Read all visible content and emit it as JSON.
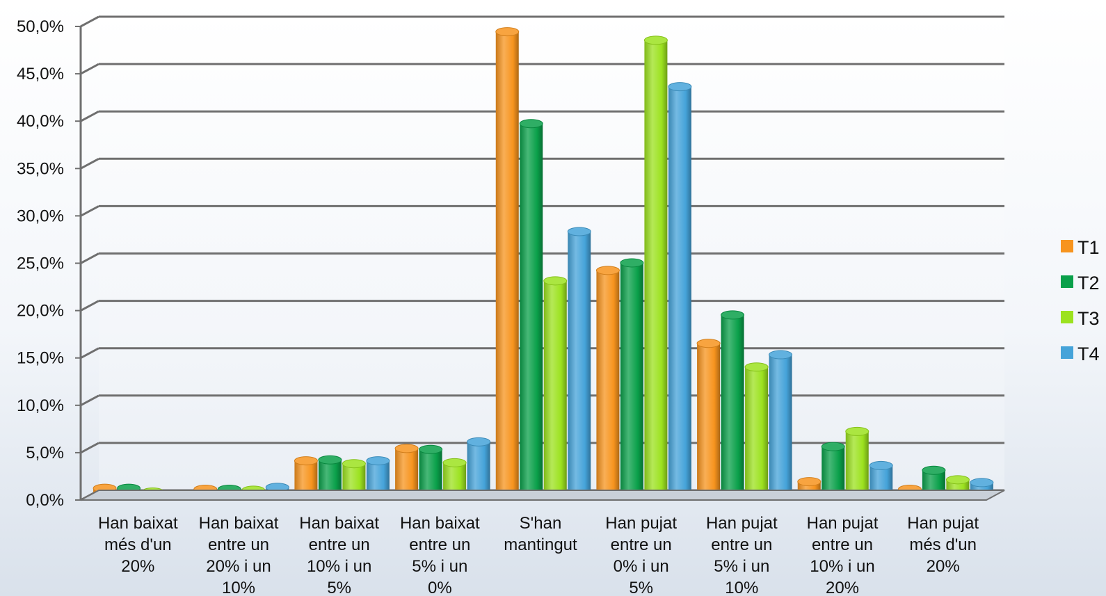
{
  "chart_data": {
    "type": "bar",
    "categories": [
      [
        "Han baixat",
        "més d'un",
        "20%"
      ],
      [
        "Han baixat",
        "entre un",
        "20% i un",
        "10%"
      ],
      [
        "Han baixat",
        "entre un",
        "10% i un",
        "5%"
      ],
      [
        "Han baixat",
        "entre un",
        "5% i un",
        "0%"
      ],
      [
        "S'han",
        "mantingut"
      ],
      [
        "Han pujat",
        "entre un",
        "0% i un",
        "5%"
      ],
      [
        "Han pujat",
        "entre un",
        "5% i un",
        "10%"
      ],
      [
        "Han pujat",
        "entre un",
        "10% i un",
        "20%"
      ],
      [
        "Han pujat",
        "més d'un",
        "20%"
      ]
    ],
    "series": [
      {
        "name": "T1",
        "color": "#f7941e",
        "values": [
          0.8,
          0.7,
          3.7,
          5.0,
          49.0,
          23.8,
          16.1,
          1.5,
          0.7
        ]
      },
      {
        "name": "T2",
        "color": "#0aa04a",
        "values": [
          0.8,
          0.7,
          3.8,
          4.9,
          39.3,
          24.6,
          19.1,
          5.2,
          2.7
        ]
      },
      {
        "name": "T3",
        "color": "#9ce21f",
        "values": [
          0.4,
          0.6,
          3.4,
          3.5,
          22.7,
          48.1,
          13.6,
          6.8,
          1.7
        ]
      },
      {
        "name": "T4",
        "color": "#45a3d9",
        "values": [
          0.1,
          0.9,
          3.7,
          5.7,
          27.9,
          43.2,
          14.9,
          3.2,
          1.4
        ]
      }
    ],
    "y_ticks": [
      "0,0%",
      "5,0%",
      "10,0%",
      "15,0%",
      "20,0%",
      "25,0%",
      "30,0%",
      "35,0%",
      "40,0%",
      "45,0%",
      "50,0%"
    ],
    "ylim": [
      0,
      50
    ],
    "grid": true,
    "legend_position": "right"
  }
}
